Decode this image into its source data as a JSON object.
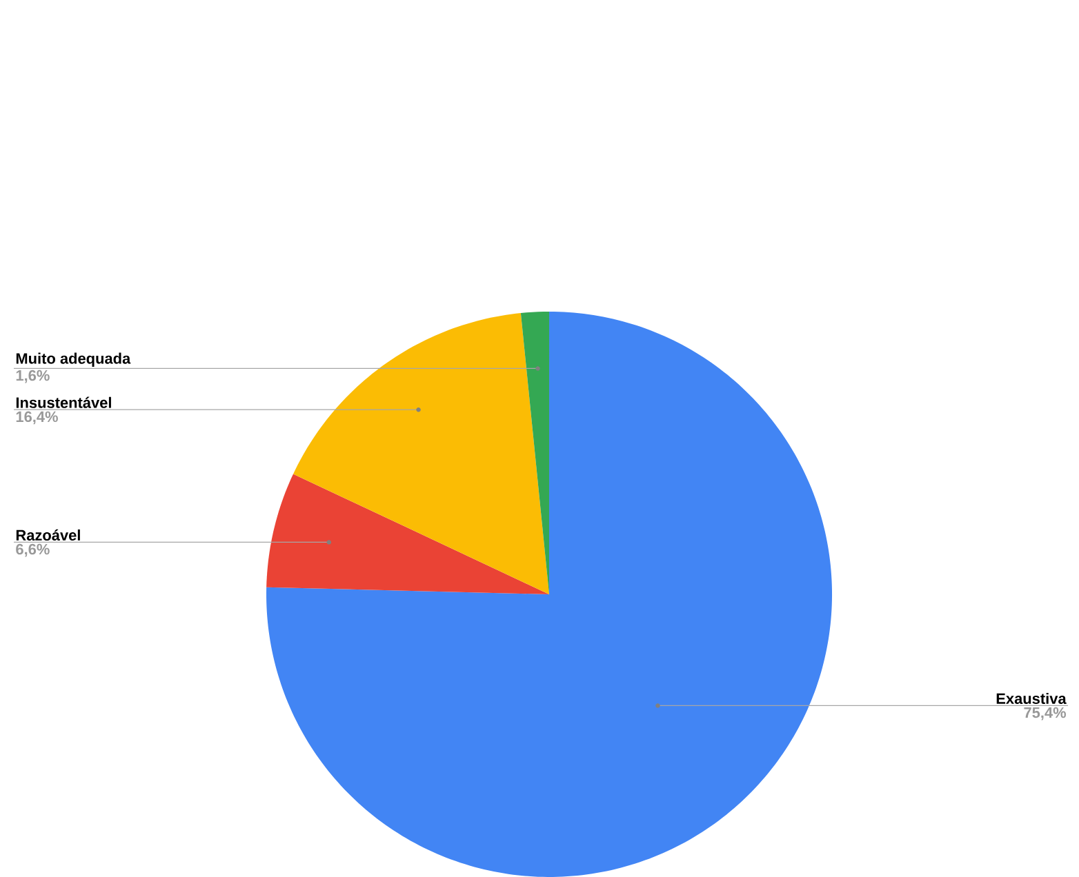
{
  "chart_data": {
    "type": "pie",
    "categories": [
      "Exaustiva",
      "Razoável",
      "Insustentável",
      "Muito adequada"
    ],
    "values": [
      75.4,
      6.6,
      16.4,
      1.6
    ],
    "value_labels": [
      "75,4%",
      "6,6%",
      "16,4%",
      "1,6%"
    ],
    "colors": [
      "#4285f4",
      "#ea4335",
      "#fbbc04",
      "#34a853"
    ]
  }
}
